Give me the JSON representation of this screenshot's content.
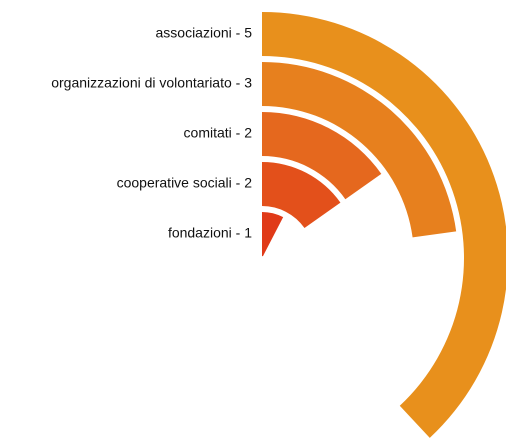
{
  "chart_data": {
    "type": "radial-bar",
    "categories": [
      "associazioni - 5",
      "organizzazioni di volontariato - 3",
      "comitati - 2",
      "cooperative sociali - 2",
      "fondazioni - 1"
    ],
    "values": [
      5,
      3,
      2,
      2,
      1
    ],
    "colors": [
      "#e8901c",
      "#e7801e",
      "#e5681e",
      "#e3501b",
      "#e03a18"
    ]
  }
}
